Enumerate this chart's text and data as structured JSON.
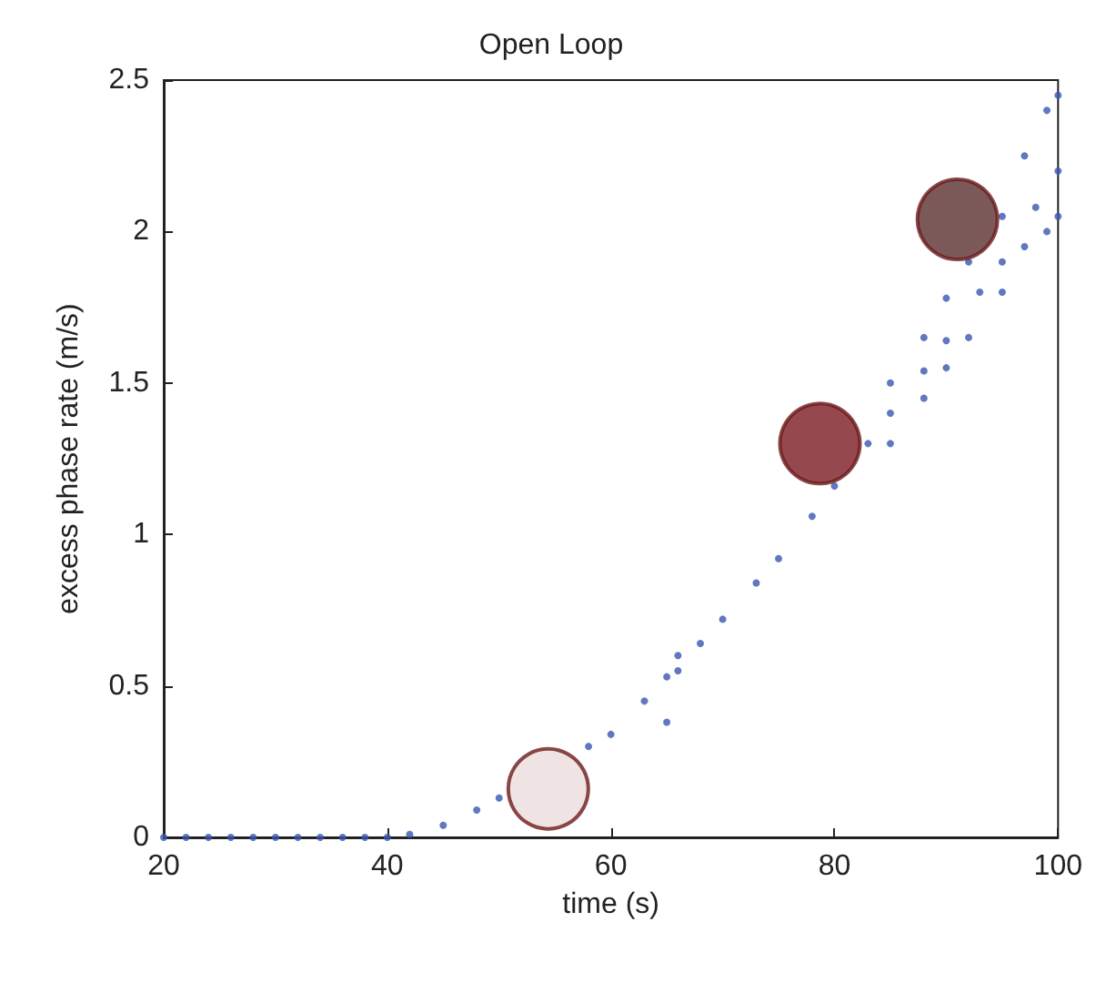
{
  "chart_data": {
    "type": "scatter",
    "title": "Open Loop",
    "xlabel": "time (s)",
    "ylabel": "excess phase rate (m/s)",
    "xlim": [
      20,
      100
    ],
    "ylim": [
      0,
      2.5
    ],
    "xticks": [
      20,
      40,
      60,
      80,
      100
    ],
    "yticks": [
      0,
      0.5,
      1,
      1.5,
      2,
      2.5
    ],
    "grid": false,
    "marker": "circle",
    "series": [
      {
        "color": "#3a56b0",
        "x": [
          20,
          22,
          24,
          26,
          28,
          30,
          32,
          34,
          36,
          38,
          40,
          42,
          45,
          48,
          50,
          52,
          55,
          58,
          60,
          63,
          65,
          65,
          66,
          66,
          68,
          70,
          73,
          75,
          78,
          80,
          83,
          85,
          85,
          85,
          88,
          88,
          88,
          90,
          90,
          90,
          92,
          92,
          93,
          95,
          95,
          95,
          97,
          97,
          98,
          99,
          99,
          100,
          100,
          100
        ],
        "values": [
          0,
          0,
          0,
          0,
          0,
          0,
          0,
          0,
          0,
          0,
          0,
          0.01,
          0.04,
          0.09,
          0.13,
          null,
          null,
          0.3,
          0.34,
          0.45,
          0.53,
          0.38,
          0.6,
          0.55,
          0.64,
          0.72,
          0.84,
          0.92,
          1.06,
          1.16,
          1.3,
          1.4,
          1.3,
          1.5,
          1.54,
          1.45,
          1.65,
          1.64,
          1.55,
          1.78,
          1.65,
          1.9,
          1.8,
          1.9,
          1.8,
          2.05,
          1.95,
          2.25,
          2.08,
          2.0,
          2.4,
          2.2,
          2.05,
          2.45
        ]
      },
      {
        "x": [
          54.4,
          78.7,
          91
        ],
        "values": [
          0.16,
          1.3,
          2.04
        ],
        "colors": [
          "#ecdcdc",
          "#7a1a22",
          "#5a2f2f"
        ]
      }
    ]
  }
}
